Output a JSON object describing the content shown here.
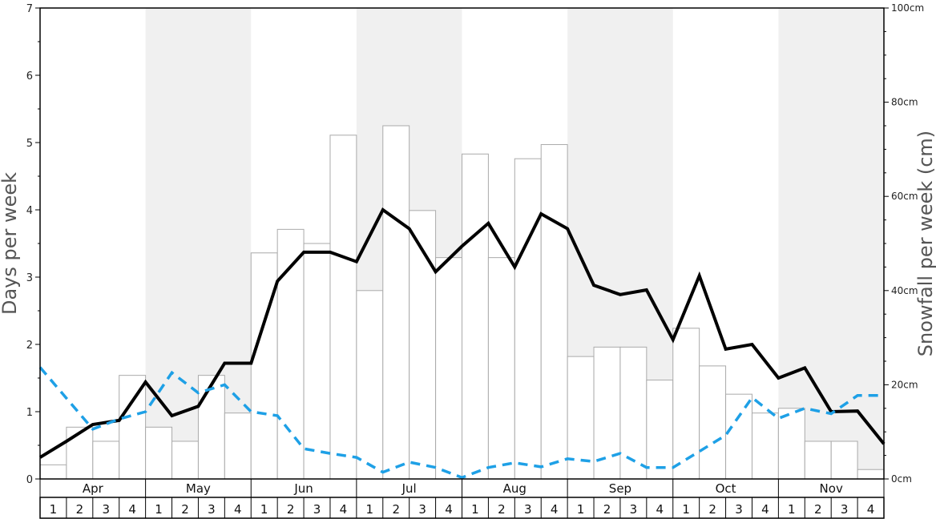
{
  "chart_data": {
    "type": "bar",
    "ylabel": "Days per week",
    "ylabel_right": "Snowfall per week (cm)",
    "ylim_left": [
      0,
      7
    ],
    "ylim_right": [
      0,
      100
    ],
    "left_ticks": [
      "0",
      "1",
      "2",
      "3",
      "4",
      "5",
      "6",
      "7"
    ],
    "right_ticks": [
      "0cm",
      "20cm",
      "40cm",
      "60cm",
      "80cm",
      "100cm"
    ],
    "months": [
      "Apr",
      "May",
      "Jun",
      "Jul",
      "Aug",
      "Sep",
      "Oct",
      "Nov"
    ],
    "week_labels": [
      "1",
      "2",
      "3",
      "4"
    ],
    "shaded_months": [
      "May",
      "Jul",
      "Sep",
      "Nov"
    ],
    "colors": {
      "bars_fill": "#ffffff",
      "bars_stroke": "#aaaaaa",
      "shade": "#f0f0f0",
      "line_solid": "#000000",
      "line_dashed": "#1ea0e6"
    },
    "series": [
      {
        "type": "bar",
        "axis": "right",
        "values": [
          3,
          11,
          8,
          22,
          11,
          8,
          22,
          14,
          48,
          53,
          50,
          73,
          40,
          75,
          57,
          47,
          69,
          47,
          68,
          71,
          26,
          28,
          28,
          21,
          32,
          24,
          18,
          14,
          15,
          8,
          8,
          2
        ]
      },
      {
        "type": "line",
        "axis": "left",
        "style": "solid",
        "values": [
          0.32,
          0.56,
          0.81,
          0.87,
          1.44,
          0.94,
          1.08,
          1.72,
          1.72,
          2.94,
          3.37,
          3.37,
          3.23,
          4.0,
          3.72,
          3.08,
          3.46,
          3.8,
          3.15,
          3.94,
          3.72,
          2.88,
          2.74,
          2.81,
          2.07,
          3.02,
          1.93,
          2.0,
          1.5,
          1.65,
          1.0,
          1.01,
          0.52
        ]
      },
      {
        "type": "line",
        "axis": "left",
        "style": "dashed",
        "values": [
          1.66,
          1.2,
          0.74,
          0.89,
          1.0,
          1.58,
          1.28,
          1.4,
          1.0,
          0.94,
          0.45,
          0.38,
          0.32,
          0.1,
          0.25,
          0.17,
          0.02,
          0.17,
          0.24,
          0.18,
          0.3,
          0.26,
          0.38,
          0.17,
          0.17,
          0.41,
          0.65,
          1.21,
          0.9,
          1.05,
          0.97,
          1.24,
          1.24
        ]
      }
    ]
  }
}
